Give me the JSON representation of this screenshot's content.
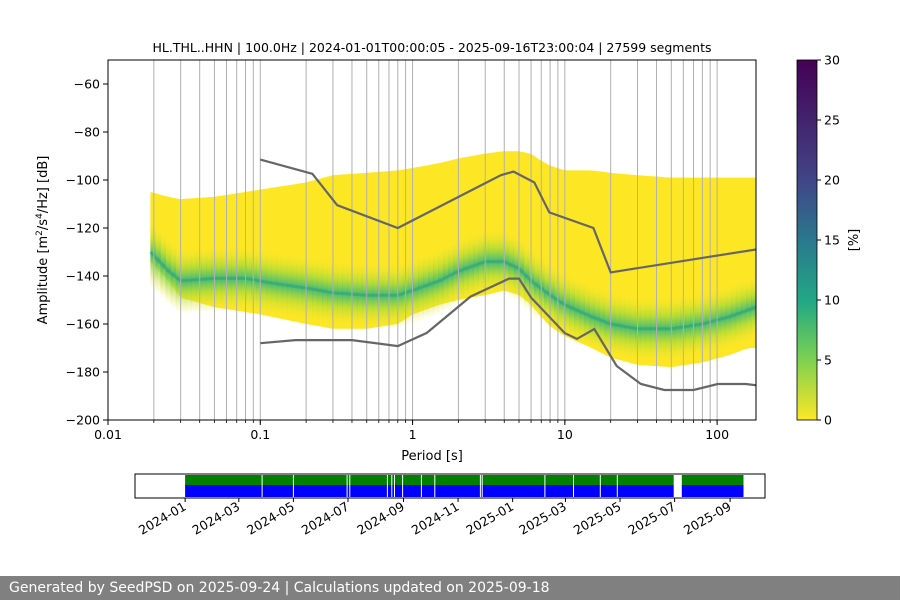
{
  "chart_data": {
    "type": "heatmap",
    "title": "HL.THL..HHN | 100.0Hz | 2024-01-01T00:00:05 - 2025-09-16T23:00:04 | 27599 segments",
    "xlabel": "Period [s]",
    "ylabel_parts": {
      "main": "Amplitude [m",
      "sup1": "2",
      "mid": "/s",
      "sup2": "4",
      "end": "/Hz] [dB]"
    },
    "x_scale": "log",
    "xlim": [
      0.01,
      180
    ],
    "ylim": [
      -200,
      -50
    ],
    "x_ticks": [
      {
        "value": 0.01,
        "label": "0.01"
      },
      {
        "value": 0.1,
        "label": "0.1"
      },
      {
        "value": 1,
        "label": "1"
      },
      {
        "value": 10,
        "label": "10"
      },
      {
        "value": 100,
        "label": "100"
      }
    ],
    "y_ticks": [
      {
        "value": -60,
        "label": "−60"
      },
      {
        "value": -80,
        "label": "−80"
      },
      {
        "value": -100,
        "label": "−100"
      },
      {
        "value": -120,
        "label": "−120"
      },
      {
        "value": -140,
        "label": "−140"
      },
      {
        "value": -160,
        "label": "−160"
      },
      {
        "value": -180,
        "label": "−180"
      },
      {
        "value": -200,
        "label": "−200"
      }
    ],
    "period_gridlines": [
      0.02,
      0.03,
      0.04,
      0.05,
      0.06,
      0.07,
      0.08,
      0.09,
      0.1,
      0.2,
      0.3,
      0.4,
      0.5,
      0.6,
      0.7,
      0.8,
      0.9,
      1,
      2,
      3,
      4,
      5,
      6,
      7,
      8,
      9,
      10,
      20,
      30,
      40,
      50,
      60,
      70,
      80,
      90,
      100
    ],
    "colorbar": {
      "label": "[%]",
      "range": [
        0,
        30
      ],
      "ticks": [
        {
          "value": 0,
          "label": "0"
        },
        {
          "value": 5,
          "label": "5"
        },
        {
          "value": 10,
          "label": "10"
        },
        {
          "value": 15,
          "label": "15"
        },
        {
          "value": 20,
          "label": "20"
        },
        {
          "value": 25,
          "label": "25"
        },
        {
          "value": 30,
          "label": "30"
        }
      ],
      "colormap": "viridis"
    },
    "psd_envelope": {
      "period": [
        0.019,
        0.025,
        0.03,
        0.05,
        0.1,
        0.2,
        0.3,
        0.5,
        0.8,
        1.0,
        1.5,
        2.0,
        3.0,
        4.0,
        5.0,
        6.0,
        7.0,
        8.0,
        10.0,
        15.0,
        20.0,
        30.0,
        50.0,
        80.0,
        120.0,
        160.0,
        180.0
      ],
      "upper_db": [
        -105,
        -107,
        -108,
        -107,
        -104,
        -101,
        -98,
        -97,
        -96,
        -95,
        -93,
        -91,
        -89,
        -88,
        -88,
        -89,
        -92,
        -94,
        -96,
        -96,
        -97,
        -98,
        -99,
        -99,
        -99,
        -99,
        -99
      ],
      "lower_db": [
        -134,
        -142,
        -149,
        -153,
        -156,
        -160,
        -162,
        -162,
        -160,
        -156,
        -152,
        -150,
        -148,
        -146,
        -148,
        -152,
        -157,
        -161,
        -165,
        -170,
        -174,
        -177,
        -178,
        -176,
        -173,
        -170,
        -170
      ]
    },
    "mode_curve": {
      "period": [
        0.019,
        0.025,
        0.03,
        0.05,
        0.08,
        0.12,
        0.2,
        0.3,
        0.5,
        0.8,
        1.0,
        1.5,
        2.0,
        3.0,
        4.0,
        5.0,
        6.0,
        8.0,
        10.0,
        15.0,
        20.0,
        30.0,
        50.0,
        80.0,
        120.0,
        180.0
      ],
      "db": [
        -130,
        -138,
        -142,
        -141,
        -141,
        -143,
        -145,
        -147,
        -148,
        -148,
        -146,
        -142,
        -138,
        -134,
        -134,
        -137,
        -142,
        -148,
        -152,
        -157,
        -160,
        -162,
        -162,
        -160,
        -157,
        -153
      ]
    },
    "nhnm": {
      "period": [
        0.1,
        0.22,
        0.32,
        0.8,
        3.8,
        4.6,
        6.3,
        7.9,
        15.4,
        20,
        354
      ],
      "db": [
        -91.5,
        -97.4,
        -110.5,
        -120,
        -98,
        -96.5,
        -101,
        -113.5,
        -120,
        -138.5,
        -126
      ]
    },
    "nlnm": {
      "period": [
        0.1,
        0.17,
        0.4,
        0.8,
        1.24,
        2.4,
        4.3,
        5.0,
        6.0,
        10.0,
        12.0,
        15.6,
        21.9,
        31.6,
        45,
        70,
        101,
        154,
        328
      ],
      "db": [
        -168,
        -166.7,
        -166.7,
        -169.2,
        -163.7,
        -148.6,
        -141.1,
        -141.1,
        -149.0,
        -163.8,
        -166.2,
        -162.1,
        -177.5,
        -185.0,
        -187.5,
        -187.5,
        -185.0,
        -185.0,
        -187.5
      ]
    },
    "availability": {
      "x_ticks": [
        "2024-01",
        "2024-03",
        "2024-05",
        "2024-07",
        "2024-09",
        "2024-11",
        "2025-01",
        "2025-03",
        "2025-05",
        "2025-07",
        "2025-09"
      ],
      "x_tick_days": [
        0,
        60,
        121,
        182,
        244,
        305,
        366,
        425,
        486,
        547,
        609
      ],
      "range_days": [
        -56,
        648
      ],
      "data_start_day": 0,
      "data_end_day": 624,
      "gaps_days": [
        [
          546,
          555
        ]
      ],
      "minor_gap_days": [
        86,
        121,
        181,
        184,
        226,
        231,
        234,
        243,
        264,
        279,
        330,
        332,
        402,
        434,
        464,
        483
      ],
      "colors": {
        "top": "#008000",
        "bottom": "#0000ff"
      }
    }
  },
  "footer": "Generated by SeedPSD on 2025-09-24 | Calculations updated on 2025-09-18"
}
